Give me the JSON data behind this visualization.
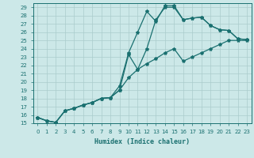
{
  "xlabel": "Humidex (Indice chaleur)",
  "bg_color": "#cce8e8",
  "grid_color": "#aacccc",
  "line_color": "#1a7070",
  "xlim": [
    -0.5,
    23.5
  ],
  "ylim": [
    15,
    29.5
  ],
  "xticks": [
    0,
    1,
    2,
    3,
    4,
    5,
    6,
    7,
    8,
    9,
    10,
    11,
    12,
    13,
    14,
    15,
    16,
    17,
    18,
    19,
    20,
    21,
    22,
    23
  ],
  "yticks": [
    15,
    16,
    17,
    18,
    19,
    20,
    21,
    22,
    23,
    24,
    25,
    26,
    27,
    28,
    29
  ],
  "line1_x": [
    0,
    1,
    2,
    3,
    4,
    5,
    6,
    7,
    8,
    9,
    10,
    11,
    12,
    13,
    14,
    15,
    16,
    17,
    18,
    19,
    20,
    21,
    22,
    23
  ],
  "line1_y": [
    15.7,
    15.3,
    15.1,
    16.5,
    16.8,
    17.2,
    17.5,
    18.0,
    18.1,
    19.5,
    23.5,
    26.0,
    28.5,
    27.3,
    29.2,
    29.2,
    27.5,
    27.7,
    27.8,
    26.8,
    26.3,
    26.2,
    25.2,
    25.1
  ],
  "line2_x": [
    0,
    1,
    2,
    3,
    4,
    5,
    6,
    7,
    8,
    9,
    10,
    11,
    12,
    13,
    14,
    15,
    16,
    17,
    18,
    19,
    20,
    21,
    22,
    23
  ],
  "line2_y": [
    15.7,
    15.3,
    15.1,
    16.5,
    16.8,
    17.2,
    17.5,
    18.0,
    18.1,
    19.0,
    23.3,
    21.5,
    24.0,
    27.5,
    29.0,
    29.0,
    27.5,
    27.7,
    27.8,
    26.8,
    26.3,
    26.2,
    25.2,
    25.1
  ],
  "line3_x": [
    0,
    1,
    2,
    3,
    4,
    5,
    6,
    7,
    8,
    9,
    10,
    11,
    12,
    13,
    14,
    15,
    16,
    17,
    18,
    19,
    20,
    21,
    22,
    23
  ],
  "line3_y": [
    15.7,
    15.3,
    15.1,
    16.5,
    16.8,
    17.2,
    17.5,
    18.0,
    18.1,
    19.0,
    20.5,
    21.5,
    22.2,
    22.8,
    23.5,
    24.0,
    22.5,
    23.0,
    23.5,
    24.0,
    24.5,
    25.0,
    25.0,
    25.0
  ],
  "marker": "*",
  "markersize": 3,
  "linewidth": 0.9,
  "xlabel_fontsize": 6,
  "tick_fontsize": 5
}
